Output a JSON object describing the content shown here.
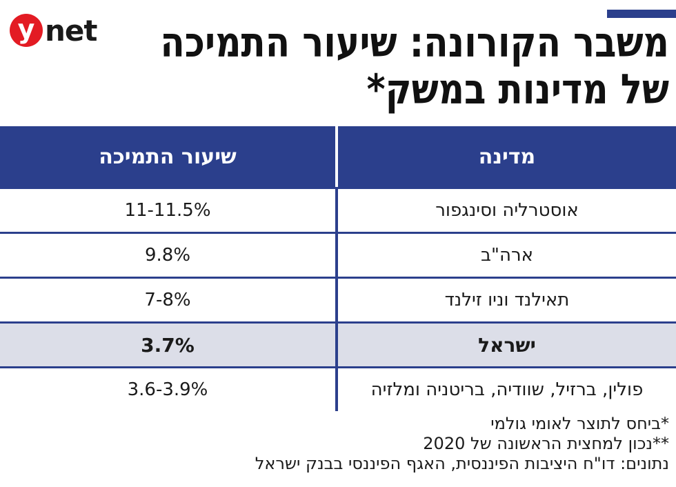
{
  "brand": {
    "logo_letter": "y",
    "logo_text": "net",
    "accent_color": "#2b3f8c",
    "logo_color": "#e31b23"
  },
  "title": {
    "line1": "משבר הקורונה: שיעור התמיכה",
    "line2": "של מדינות במשק*"
  },
  "table": {
    "headers": {
      "country": "מדינה",
      "rate": "שיעור התמיכה"
    },
    "rows": [
      {
        "country": "אוסטרליה וסינגפור",
        "rate": "11-11.5%"
      },
      {
        "country": "ארה\"ב",
        "rate": "9.8%"
      },
      {
        "country": "תאילנד וניו זילנד",
        "rate": "7-8%"
      },
      {
        "country": "ישראל",
        "rate": "3.7%"
      },
      {
        "country": "פולין, ברזיל, שוודיה, בריטניה ומלזיה",
        "rate": "3.6-3.9%"
      }
    ]
  },
  "notes": {
    "note1": "*ביחס לתוצר לאומי גולמי",
    "note2": "**נכון למחצית הראשונה של 2020",
    "source": "נתונים: דו\"ח היציבות הפיננסית, האגף הפיננסי בבנק ישראל"
  }
}
